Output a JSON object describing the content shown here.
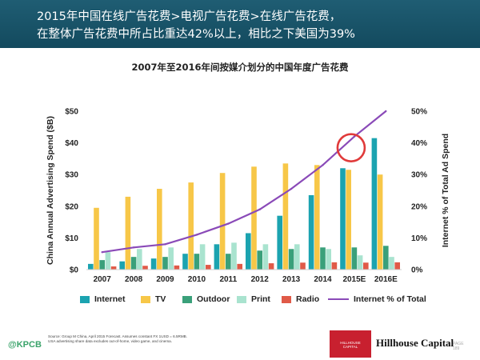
{
  "header": {
    "line1": "2015年中国在线广告花费>电视广告花费>在线广告花费，",
    "line2": "在整体广告花费中所占比重达42%以上，相比之下美国为39%"
  },
  "chart_data": {
    "type": "bar",
    "title": "2007年至2016年间按媒介划分的中国年度广告花费",
    "ylabel": "China Annual Advertising Spend ($B)",
    "y2label": "Internet % of Total Ad Spend",
    "ylim": [
      0,
      50
    ],
    "y2lim": [
      0,
      50
    ],
    "yticks": [
      "$0",
      "$10",
      "$20",
      "$30",
      "$40",
      "$50"
    ],
    "y2ticks": [
      "0%",
      "10%",
      "20%",
      "30%",
      "40%",
      "50%"
    ],
    "categories": [
      "2007",
      "2008",
      "2009",
      "2010",
      "2011",
      "2012",
      "2013",
      "2014",
      "2015E",
      "2016E"
    ],
    "series": [
      {
        "name": "Internet",
        "color": "#1ba3b0",
        "values": [
          1.8,
          2.6,
          3.5,
          5.0,
          8.0,
          11.5,
          17.0,
          23.5,
          32.0,
          41.5
        ]
      },
      {
        "name": "TV",
        "color": "#f7c748",
        "values": [
          19.5,
          23.0,
          25.5,
          27.5,
          30.5,
          32.5,
          33.5,
          33.0,
          31.5,
          30.0
        ]
      },
      {
        "name": "Outdoor",
        "color": "#3aa07a",
        "values": [
          3.0,
          4.0,
          4.0,
          5.0,
          5.0,
          6.0,
          6.5,
          7.0,
          7.0,
          7.5
        ]
      },
      {
        "name": "Print",
        "color": "#a9e3cf",
        "values": [
          5.5,
          6.5,
          7.0,
          8.0,
          8.5,
          8.0,
          8.0,
          6.5,
          4.5,
          4.0
        ]
      },
      {
        "name": "Radio",
        "color": "#e05a48",
        "values": [
          1.0,
          1.2,
          1.3,
          1.5,
          1.8,
          2.0,
          2.2,
          2.3,
          2.2,
          2.3
        ]
      }
    ],
    "line": {
      "name": "Internet % of Total",
      "color": "#8a4ab8",
      "axis": "right",
      "values": [
        5.5,
        7.0,
        8.0,
        11.0,
        14.5,
        19.0,
        25.5,
        33.0,
        42.0,
        50.0
      ]
    },
    "highlight_category": "2015E",
    "legend": [
      "Internet",
      "TV",
      "Outdoor",
      "Print",
      "Radio",
      "Internet % of Total"
    ]
  },
  "footer": {
    "logo": "@KPCB",
    "source_line1": "Source: Group M China, April 2015 Forecast. Assumes constant FX 1USD = 6.5RMB.",
    "source_line2": "USA advertising share data excludes out-of-home, video game, and cinema.",
    "hillhouse_box_line1": "HILLHOUSE",
    "hillhouse_box_line2": "CAPITAL",
    "hillhouse_name": "Hillhouse Capital",
    "page_label": "PAGE",
    "page_number": "189"
  }
}
